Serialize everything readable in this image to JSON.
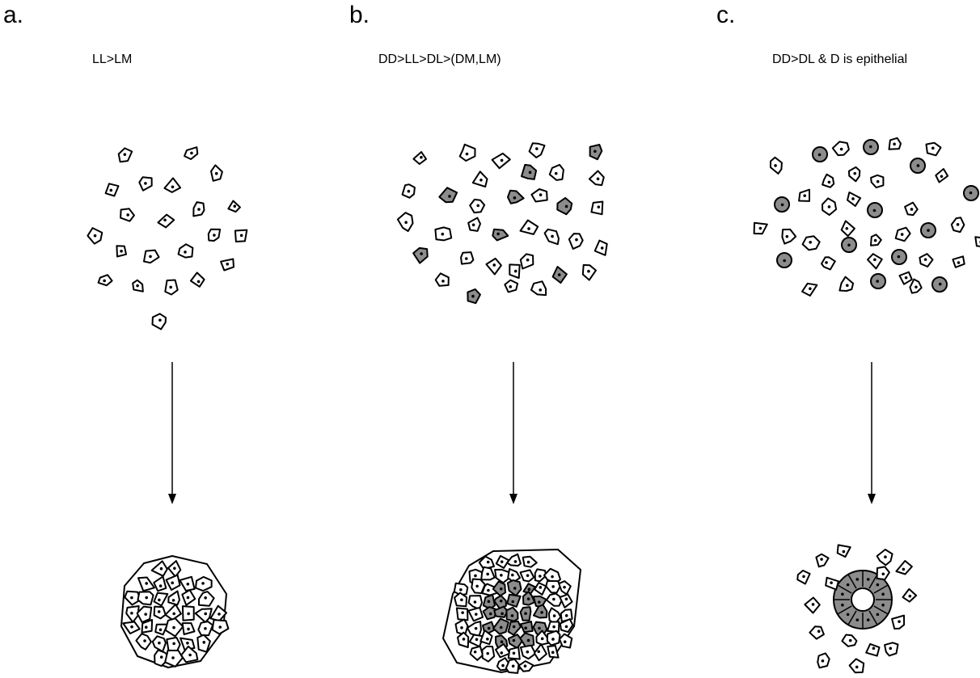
{
  "panels": [
    {
      "letter": "a.",
      "caption": "LL>LM"
    },
    {
      "letter": "b.",
      "caption": "DD>LL>DL>(DM,LM)"
    },
    {
      "letter": "c.",
      "caption": "DD>DL & D is epithelial"
    }
  ],
  "colors": {
    "light_cell": "#ffffff",
    "dark_cell": "#8c8c8c",
    "outline": "#000000"
  }
}
